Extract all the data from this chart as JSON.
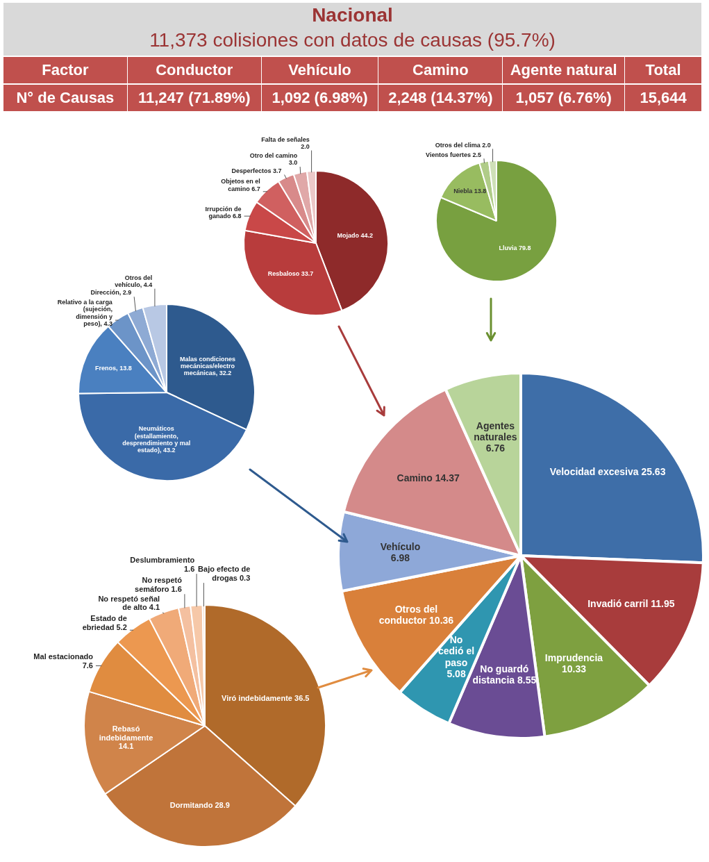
{
  "chart_data": [
    {
      "type": "other",
      "title": "Nacional",
      "subtitle": "11,373 colisiones con datos de causas (95.7%)",
      "annotations": [
        "Factor",
        "Conductor",
        "Vehículo",
        "Camino",
        "Agente natural",
        "Total",
        "N° de Causas",
        "11,247 (71.89%)",
        "1,092 (6.98%)",
        "2,248 (14.37%)",
        "1,057 (6.76%)",
        "15,644"
      ]
    },
    {
      "type": "pie",
      "categories": [
        "Mojado 44.2",
        "Resbaloso 33.7",
        "Irrupción de ganado 6.8",
        "Objetos en el camino 6.7",
        "Desperfectos 3.7",
        "Otro del camino 3.0",
        "Falta de señales 2.0"
      ],
      "values": [
        44.2,
        33.7,
        6.8,
        6.7,
        3.7,
        3.0,
        2.0
      ],
      "colors": [
        "#8e2a2a",
        "#b83c3c",
        "#c94848",
        "#d06060",
        "#d88a8a",
        "#e0a8a8",
        "#ecc8c8"
      ]
    },
    {
      "type": "pie",
      "categories": [
        "Lluvia 79.8",
        "Niebla 13.8",
        "Vientos fuertes 2.5",
        "Otros del clima 2.0"
      ],
      "values": [
        79.8,
        13.8,
        2.5,
        2.0
      ],
      "colors": [
        "#78a040",
        "#98bc60",
        "#b0cc88",
        "#cfe0b8"
      ]
    },
    {
      "type": "pie",
      "categories": [
        "Malas condiciones mecánicas/electro mecánicas, 32.2",
        "Neumáticos (estallamiento, desprendimiento y mal estado), 43.2",
        "Frenos, 13.8",
        "Relativo a la carga (sujeción, dimensión y peso), 4.3",
        "Dirección, 2.9",
        "Otros del vehículo, 4.4"
      ],
      "values": [
        32.2,
        43.2,
        13.8,
        4.3,
        2.9,
        4.4
      ],
      "colors": [
        "#2e5a8e",
        "#3a6aa8",
        "#4a80c0",
        "#6c94c8",
        "#8eaad4",
        "#b8c8e4"
      ]
    },
    {
      "type": "pie",
      "categories": [
        "Velocidad excesiva 25.63",
        "Invadió carril 11.95",
        "Imprudencia 10.33",
        "No guardó distancia 8.55",
        "No cedió el paso 5.08",
        "Otros del conductor 10.36",
        "Vehículo 6.98",
        "Camino 14.37",
        "Agentes naturales 6.76"
      ],
      "values": [
        25.63,
        11.95,
        10.33,
        8.55,
        5.08,
        10.36,
        6.98,
        14.37,
        6.76
      ],
      "colors": [
        "#3e6ea8",
        "#a83c3c",
        "#7ea040",
        "#6a4c94",
        "#2f96b0",
        "#d9803a",
        "#8ea8d8",
        "#d48a8a",
        "#b8d49a"
      ]
    },
    {
      "type": "pie",
      "categories": [
        "Viró indebidamente 36.5",
        "Dormitando 28.9",
        "Rebasó indebidamente 14.1",
        "Mal estacionado 7.6",
        "Estado de ebriedad 5.2",
        "No respetó señal de alto 4.1",
        "No respetó semáforo 1.6",
        "Deslumbramiento 1.6",
        "Bajo efecto de drogas 0.3"
      ],
      "values": [
        36.5,
        28.9,
        14.1,
        7.6,
        5.2,
        4.1,
        1.6,
        1.6,
        0.3
      ],
      "colors": [
        "#b06a2a",
        "#c0743a",
        "#d0844a",
        "#e08c40",
        "#ec9850",
        "#f0aa78",
        "#f4c0a0",
        "#f6c8a8",
        "#f8dcc8"
      ]
    }
  ]
}
